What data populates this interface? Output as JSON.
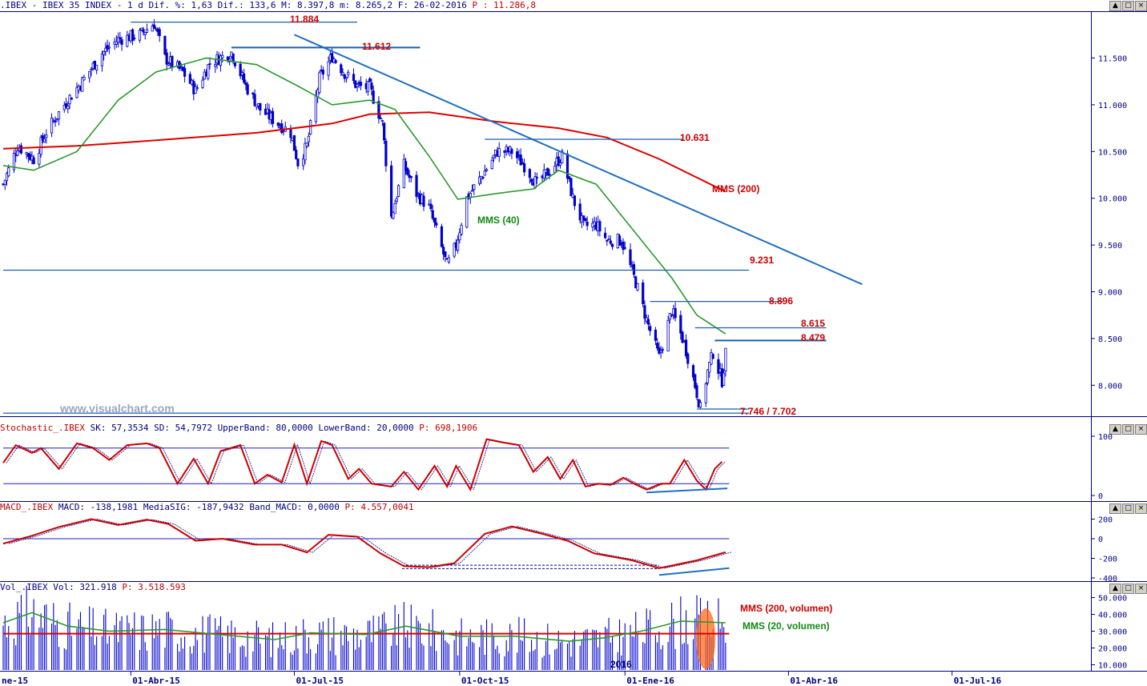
{
  "header": {
    "symbol": ".IBEX",
    "name": "IBEX 35 INDEX",
    "period": "1 d",
    "dif_pct_label": "Dif. %:",
    "dif_pct": "1,63",
    "dif_label": "Dif.:",
    "dif": "133,6",
    "max_label": "M:",
    "max": "8.397,8",
    "min_label": "m:",
    "min": "8.265,2",
    "date_label": "F:",
    "date": "26-02-2016",
    "p_label": "P :",
    "p": "11.286,8"
  },
  "stoch_header": {
    "name": "Stochastic_.IBEX",
    "sk_label": "SK:",
    "sk": "57,3534",
    "sd_label": "SD:",
    "sd": "54,7972",
    "upper_label": "UpperBand:",
    "upper": "80,0000",
    "lower_label": "LowerBand:",
    "lower": "20,0000",
    "p_label": "P:",
    "p": "698,1906"
  },
  "macd_header": {
    "name": "MACD_.IBEX",
    "macd_label": "MACD:",
    "macd": "-138,1981",
    "sig_label": "MediaSIG:",
    "sig": "-187,9432",
    "band_label": "Band_MACD:",
    "band": "0,0000",
    "p_label": "P:",
    "p": "4.557,0041"
  },
  "vol_header": {
    "name": "Vol_.IBEX",
    "vol_label": "Vol:",
    "vol": "321.918",
    "p_label": "P:",
    "p": "3.518.593"
  },
  "window_buttons": [
    "▲",
    "□",
    "×"
  ],
  "watermark": "www.visualchart.com",
  "price_levels": {
    "l11884": "11.884",
    "l11612": "11.612",
    "l10631": "10.631",
    "l9231": "9.231",
    "l8896": "8.896",
    "l8615": "8.615",
    "l8479": "8.479",
    "l7746": "7.746 / 7.702"
  },
  "ma_labels": {
    "mms200": "MMS (200)",
    "mms40": "MMS (40)",
    "vol200": "MMS (200, volumen)",
    "vol20": "MMS (20, volumen)"
  },
  "year_marker": "2016",
  "colors": {
    "candles": "#0000cc",
    "mms200": "#dd0000",
    "mms40": "#2a9a2a",
    "trendline": "#1f6fc5",
    "levels": "#1f5fa8",
    "annotation": "#cc0000",
    "axis": "#000080",
    "volume_highlight": "#ff6a1a"
  },
  "chart_data": [
    {
      "type": "candlestick",
      "title": "IBEX 35 INDEX",
      "x_range": [
        "2015-01-20",
        "2016-07-15"
      ],
      "x_ticks": [
        "ne-15",
        "01-Abr-15",
        "01-Jul-15",
        "01-Oct-15",
        "01-Ene-16",
        "01-Abr-16",
        "01-Jul-16"
      ],
      "y_ticks": [
        11500,
        11000,
        10500,
        10000,
        9500,
        9000,
        8500,
        8000
      ],
      "y_tick_labels": [
        "11.500",
        "11.000",
        "10.500",
        "10.000",
        "9.500",
        "9.000",
        "8.500",
        "8.000"
      ],
      "ylim": [
        7650,
        12060
      ],
      "close_path": [
        [
          "2015-01-20",
          10150
        ],
        [
          "2015-01-28",
          10560
        ],
        [
          "2015-02-06",
          10420
        ],
        [
          "2015-02-13",
          10710
        ],
        [
          "2015-02-24",
          11030
        ],
        [
          "2015-03-05",
          11250
        ],
        [
          "2015-03-16",
          11550
        ],
        [
          "2015-03-25",
          11700
        ],
        [
          "2015-04-06",
          11750
        ],
        [
          "2015-04-14",
          11870
        ],
        [
          "2015-04-20",
          11500
        ],
        [
          "2015-04-30",
          11350
        ],
        [
          "2015-05-07",
          11150
        ],
        [
          "2015-05-15",
          11450
        ],
        [
          "2015-05-27",
          11560
        ],
        [
          "2015-06-04",
          11200
        ],
        [
          "2015-06-12",
          10950
        ],
        [
          "2015-06-22",
          10800
        ],
        [
          "2015-06-29",
          10700
        ],
        [
          "2015-07-03",
          10380
        ],
        [
          "2015-07-08",
          10560
        ],
        [
          "2015-07-15",
          11280
        ],
        [
          "2015-07-22",
          11520
        ],
        [
          "2015-07-29",
          11340
        ],
        [
          "2015-08-05",
          11200
        ],
        [
          "2015-08-12",
          11180
        ],
        [
          "2015-08-19",
          10800
        ],
        [
          "2015-08-24",
          9800
        ],
        [
          "2015-08-31",
          10350
        ],
        [
          "2015-09-07",
          10050
        ],
        [
          "2015-09-14",
          9900
        ],
        [
          "2015-09-24",
          9280
        ],
        [
          "2015-09-29",
          9500
        ],
        [
          "2015-10-05",
          10000
        ],
        [
          "2015-10-14",
          10260
        ],
        [
          "2015-10-22",
          10500
        ],
        [
          "2015-10-30",
          10500
        ],
        [
          "2015-11-06",
          10350
        ],
        [
          "2015-11-13",
          10150
        ],
        [
          "2015-11-20",
          10300
        ],
        [
          "2015-11-27",
          10450
        ],
        [
          "2015-12-03",
          10000
        ],
        [
          "2015-12-09",
          9700
        ],
        [
          "2015-12-16",
          9720
        ],
        [
          "2015-12-22",
          9550
        ],
        [
          "2015-12-30",
          9550
        ],
        [
          "2016-01-07",
          9100
        ],
        [
          "2016-01-13",
          8700
        ],
        [
          "2016-01-20",
          8300
        ],
        [
          "2016-01-27",
          8800
        ],
        [
          "2016-02-03",
          8450
        ],
        [
          "2016-02-09",
          8000
        ],
        [
          "2016-02-12",
          7750
        ],
        [
          "2016-02-16",
          8150
        ],
        [
          "2016-02-19",
          8350
        ],
        [
          "2016-02-24",
          8050
        ],
        [
          "2016-02-26",
          8330
        ]
      ],
      "mms40": [
        [
          "2015-01-20",
          10350
        ],
        [
          "2015-02-06",
          10300
        ],
        [
          "2015-03-02",
          10500
        ],
        [
          "2015-03-25",
          11050
        ],
        [
          "2015-04-15",
          11350
        ],
        [
          "2015-05-13",
          11500
        ],
        [
          "2015-06-10",
          11430
        ],
        [
          "2015-07-03",
          11200
        ],
        [
          "2015-07-22",
          11000
        ],
        [
          "2015-08-12",
          11050
        ],
        [
          "2015-08-26",
          10950
        ],
        [
          "2015-09-14",
          10450
        ],
        [
          "2015-09-30",
          9990
        ],
        [
          "2015-10-21",
          10050
        ],
        [
          "2015-11-11",
          10100
        ],
        [
          "2015-11-25",
          10300
        ],
        [
          "2015-12-16",
          10150
        ],
        [
          "2016-01-06",
          9650
        ],
        [
          "2016-01-27",
          9150
        ],
        [
          "2016-02-10",
          8750
        ],
        [
          "2016-02-26",
          8550
        ]
      ],
      "mms200": [
        [
          "2015-01-20",
          10530
        ],
        [
          "2015-03-02",
          10560
        ],
        [
          "2015-04-15",
          10620
        ],
        [
          "2015-06-10",
          10700
        ],
        [
          "2015-07-22",
          10800
        ],
        [
          "2015-08-12",
          10900
        ],
        [
          "2015-09-14",
          10920
        ],
        [
          "2015-10-21",
          10820
        ],
        [
          "2015-11-25",
          10750
        ],
        [
          "2015-12-22",
          10650
        ],
        [
          "2016-01-20",
          10420
        ],
        [
          "2016-02-26",
          10070
        ]
      ],
      "trendline": [
        [
          "2015-07-01",
          11750
        ],
        [
          "2016-05-12",
          9080
        ]
      ],
      "levels": [
        11884,
        11612,
        10631,
        9231,
        8896,
        8615,
        8479,
        7746,
        7702
      ]
    },
    {
      "type": "line",
      "title": "Stochastic_.IBEX",
      "y_ticks": [
        100,
        0
      ],
      "y_tick_labels": [
        "100",
        "0"
      ],
      "bands": [
        80,
        20
      ],
      "sk_path": [
        [
          "2015-01-20",
          55
        ],
        [
          "2015-01-27",
          85
        ],
        [
          "2015-02-05",
          72
        ],
        [
          "2015-02-10",
          80
        ],
        [
          "2015-02-20",
          45
        ],
        [
          "2015-03-02",
          88
        ],
        [
          "2015-03-11",
          80
        ],
        [
          "2015-03-20",
          60
        ],
        [
          "2015-03-30",
          85
        ],
        [
          "2015-04-10",
          88
        ],
        [
          "2015-04-17",
          80
        ],
        [
          "2015-04-27",
          20
        ],
        [
          "2015-05-06",
          62
        ],
        [
          "2015-05-14",
          20
        ],
        [
          "2015-05-21",
          75
        ],
        [
          "2015-06-01",
          85
        ],
        [
          "2015-06-09",
          20
        ],
        [
          "2015-06-16",
          35
        ],
        [
          "2015-06-24",
          22
        ],
        [
          "2015-07-01",
          86
        ],
        [
          "2015-07-08",
          20
        ],
        [
          "2015-07-16",
          92
        ],
        [
          "2015-07-22",
          85
        ],
        [
          "2015-07-31",
          28
        ],
        [
          "2015-08-06",
          45
        ],
        [
          "2015-08-13",
          20
        ],
        [
          "2015-08-24",
          15
        ],
        [
          "2015-08-31",
          40
        ],
        [
          "2015-09-08",
          10
        ],
        [
          "2015-09-17",
          50
        ],
        [
          "2015-09-24",
          15
        ],
        [
          "2015-09-29",
          50
        ],
        [
          "2015-10-07",
          10
        ],
        [
          "2015-10-16",
          95
        ],
        [
          "2015-10-24",
          90
        ],
        [
          "2015-11-03",
          85
        ],
        [
          "2015-11-11",
          40
        ],
        [
          "2015-11-19",
          65
        ],
        [
          "2015-11-26",
          28
        ],
        [
          "2015-12-03",
          60
        ],
        [
          "2015-12-10",
          15
        ],
        [
          "2015-12-17",
          20
        ],
        [
          "2015-12-24",
          18
        ],
        [
          "2015-12-31",
          30
        ],
        [
          "2016-01-06",
          20
        ],
        [
          "2016-01-13",
          10
        ],
        [
          "2016-01-21",
          20
        ],
        [
          "2016-01-26",
          20
        ],
        [
          "2016-02-03",
          60
        ],
        [
          "2016-02-10",
          25
        ],
        [
          "2016-02-15",
          10
        ],
        [
          "2016-02-20",
          45
        ],
        [
          "2016-02-24",
          57
        ]
      ],
      "divergence": [
        [
          "2016-01-13",
          5
        ],
        [
          "2016-02-27",
          12
        ]
      ]
    },
    {
      "type": "line",
      "title": "MACD_.IBEX",
      "y_ticks": [
        200,
        0,
        -200,
        -400
      ],
      "y_tick_labels": [
        "200",
        "0",
        "-200",
        "-400"
      ],
      "macd_path": [
        [
          "2015-01-20",
          -50
        ],
        [
          "2015-02-05",
          30
        ],
        [
          "2015-02-20",
          120
        ],
        [
          "2015-03-10",
          200
        ],
        [
          "2015-03-25",
          140
        ],
        [
          "2015-04-10",
          195
        ],
        [
          "2015-04-22",
          150
        ],
        [
          "2015-05-07",
          -20
        ],
        [
          "2015-05-22",
          0
        ],
        [
          "2015-06-09",
          -60
        ],
        [
          "2015-06-24",
          -60
        ],
        [
          "2015-07-08",
          -140
        ],
        [
          "2015-07-20",
          40
        ],
        [
          "2015-08-05",
          20
        ],
        [
          "2015-08-18",
          -150
        ],
        [
          "2015-08-31",
          -280
        ],
        [
          "2015-09-14",
          -290
        ],
        [
          "2015-09-28",
          -250
        ],
        [
          "2015-10-15",
          50
        ],
        [
          "2015-10-30",
          125
        ],
        [
          "2015-11-16",
          50
        ],
        [
          "2015-11-30",
          -20
        ],
        [
          "2015-12-15",
          -150
        ],
        [
          "2016-01-05",
          -220
        ],
        [
          "2016-01-20",
          -300
        ],
        [
          "2016-02-10",
          -220
        ],
        [
          "2016-02-26",
          -138
        ]
      ],
      "support_levels": [
        -270,
        -305
      ],
      "divergence": [
        [
          "2016-01-20",
          -370
        ],
        [
          "2016-02-28",
          -300
        ]
      ]
    },
    {
      "type": "bar",
      "title": "Vol_.IBEX",
      "y_ticks": [
        50000,
        40000,
        30000,
        20000,
        10000
      ],
      "y_tick_labels": [
        "50.000",
        "40.000",
        "30.000",
        "20.000",
        "10.000"
      ],
      "mms200_volume": 28500,
      "mms20_volume_path": [
        [
          "2015-01-20",
          35000
        ],
        [
          "2015-02-05",
          41000
        ],
        [
          "2015-02-25",
          33000
        ],
        [
          "2015-03-20",
          30000
        ],
        [
          "2015-04-20",
          31000
        ],
        [
          "2015-05-20",
          28000
        ],
        [
          "2015-06-20",
          25000
        ],
        [
          "2015-07-10",
          29000
        ],
        [
          "2015-08-10",
          28000
        ],
        [
          "2015-09-01",
          33000
        ],
        [
          "2015-10-01",
          27000
        ],
        [
          "2015-11-01",
          27000
        ],
        [
          "2015-12-01",
          24000
        ],
        [
          "2015-12-20",
          26000
        ],
        [
          "2016-01-10",
          30000
        ],
        [
          "2016-02-01",
          36000
        ],
        [
          "2016-02-26",
          35000
        ]
      ]
    }
  ]
}
